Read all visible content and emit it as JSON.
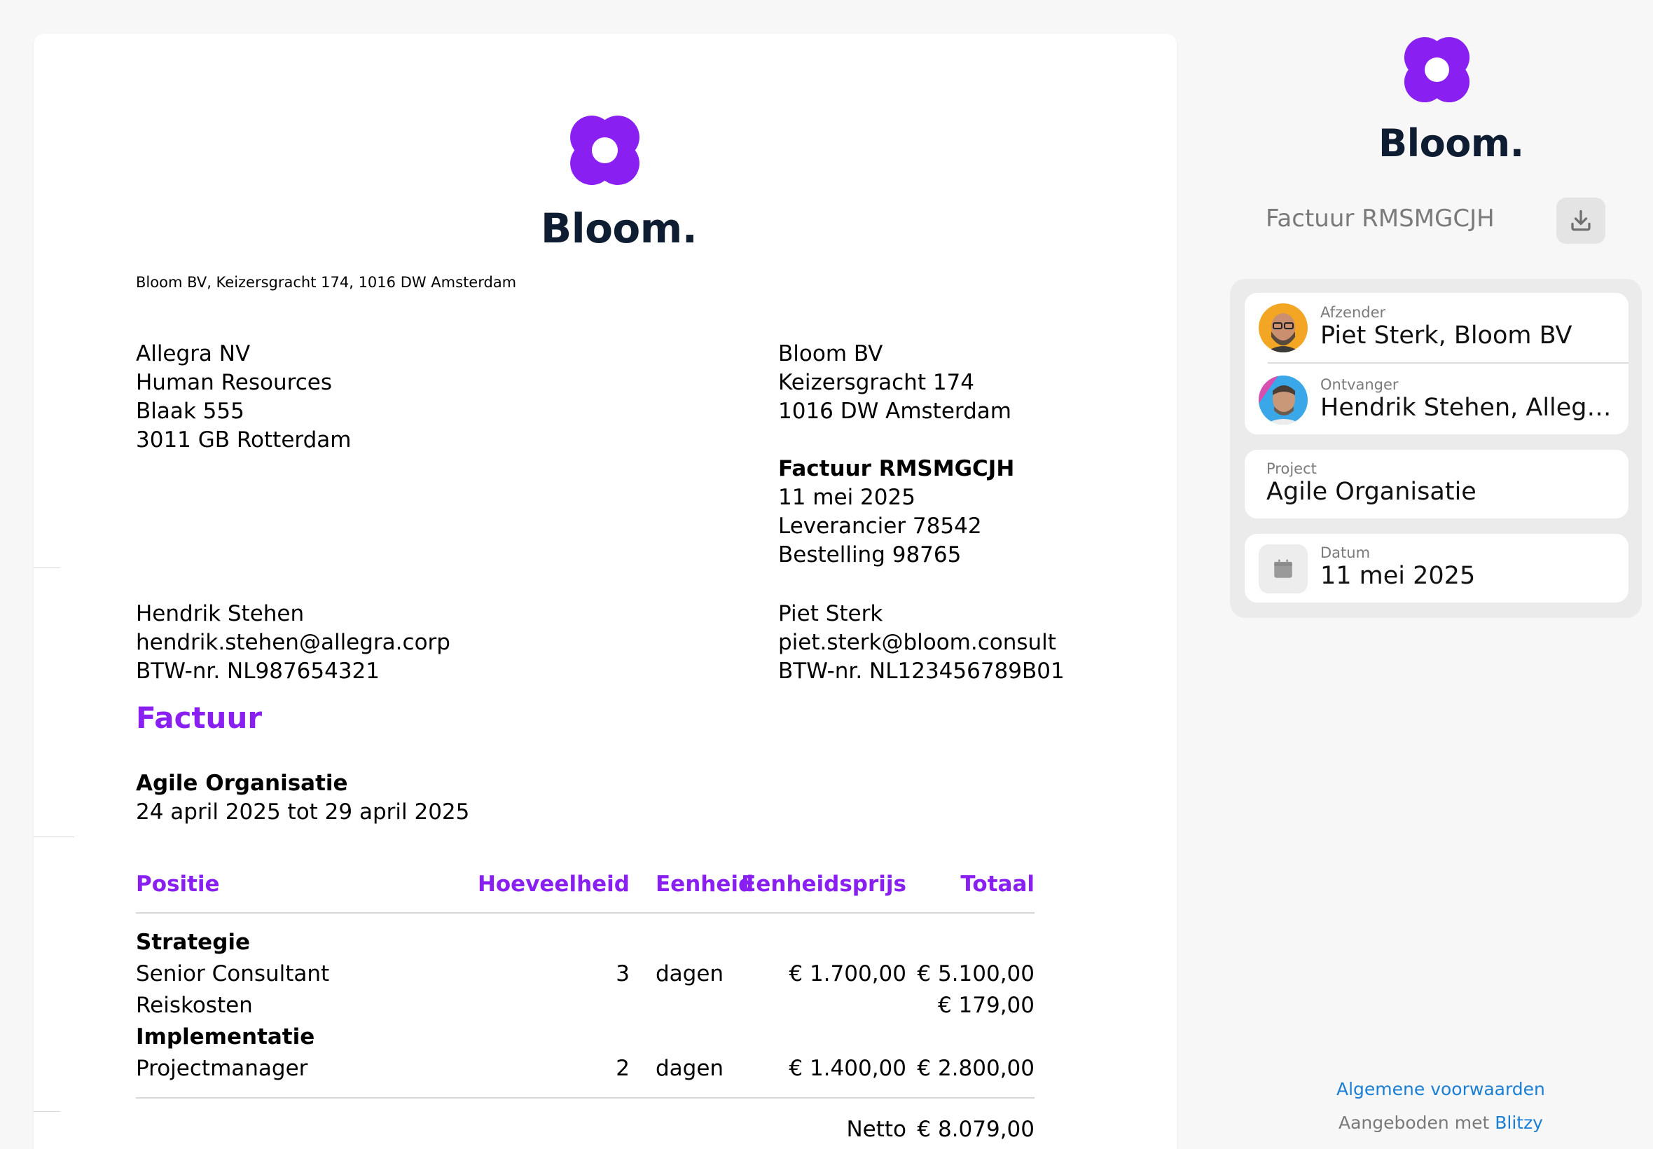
{
  "brand": {
    "name": "Bloom.",
    "color": "#8a1ff2",
    "text_color": "#0f1d33"
  },
  "invoice": {
    "sender_line": "Bloom BV, Keizersgracht 174, 1016 DW Amsterdam",
    "recipient_address": [
      "Allegra NV",
      "Human Resources",
      "Blaak 555",
      "3011 GB Rotterdam"
    ],
    "sender_address": [
      "Bloom BV",
      "Keizersgracht 174",
      "1016 DW Amsterdam"
    ],
    "meta": {
      "invoice_label": "Factuur RMSMGCJH",
      "date": "11 mei 2025",
      "supplier": "Leverancier 78542",
      "order": "Bestelling 98765"
    },
    "recipient_contact": [
      "Hendrik Stehen",
      "hendrik.stehen@allegra.corp",
      "BTW-nr. NL987654321"
    ],
    "sender_contact": [
      "Piet Sterk",
      "piet.sterk@bloom.consult",
      "BTW-nr. NL123456789B01"
    ],
    "heading": "Factuur",
    "project_name": "Agile Organisatie",
    "period": "24 april 2025 tot 29 april 2025",
    "table": {
      "headers": {
        "position": "Positie",
        "quantity": "Hoeveelheid",
        "unit": "Eenheid",
        "unit_price": "Eenheidsprijs",
        "total": "Totaal"
      },
      "rows": [
        {
          "group": "Strategie"
        },
        {
          "position": "Senior Consultant",
          "quantity": "3",
          "unit": "dagen",
          "unit_price": "€ 1.700,00",
          "total": "€ 5.100,00"
        },
        {
          "position": "Reiskosten",
          "quantity": "",
          "unit": "",
          "unit_price": "",
          "total": "€ 179,00"
        },
        {
          "group": "Implementatie"
        },
        {
          "position": "Projectmanager",
          "quantity": "2",
          "unit": "dagen",
          "unit_price": "€ 1.400,00",
          "total": "€ 2.800,00"
        }
      ],
      "net_label": "Netto",
      "net_value": "€ 8.079,00"
    }
  },
  "sidebar": {
    "title": "Factuur RMSMGCJH",
    "download_icon": "download-icon",
    "sender": {
      "label": "Afzender",
      "value": "Piet Sterk, Bloom BV"
    },
    "recipient": {
      "label": "Ontvanger",
      "value": "Hendrik Stehen, Allegra NV"
    },
    "project": {
      "label": "Project",
      "value": "Agile Organisatie"
    },
    "date": {
      "label": "Datum",
      "value": "11 mei 2025",
      "icon": "calendar-icon"
    },
    "terms_link": "Algemene voorwaarden",
    "offered_by_prefix": "Aangeboden met ",
    "offered_by_brand": "Blitzy",
    "link_color": "#1a7fd4"
  }
}
